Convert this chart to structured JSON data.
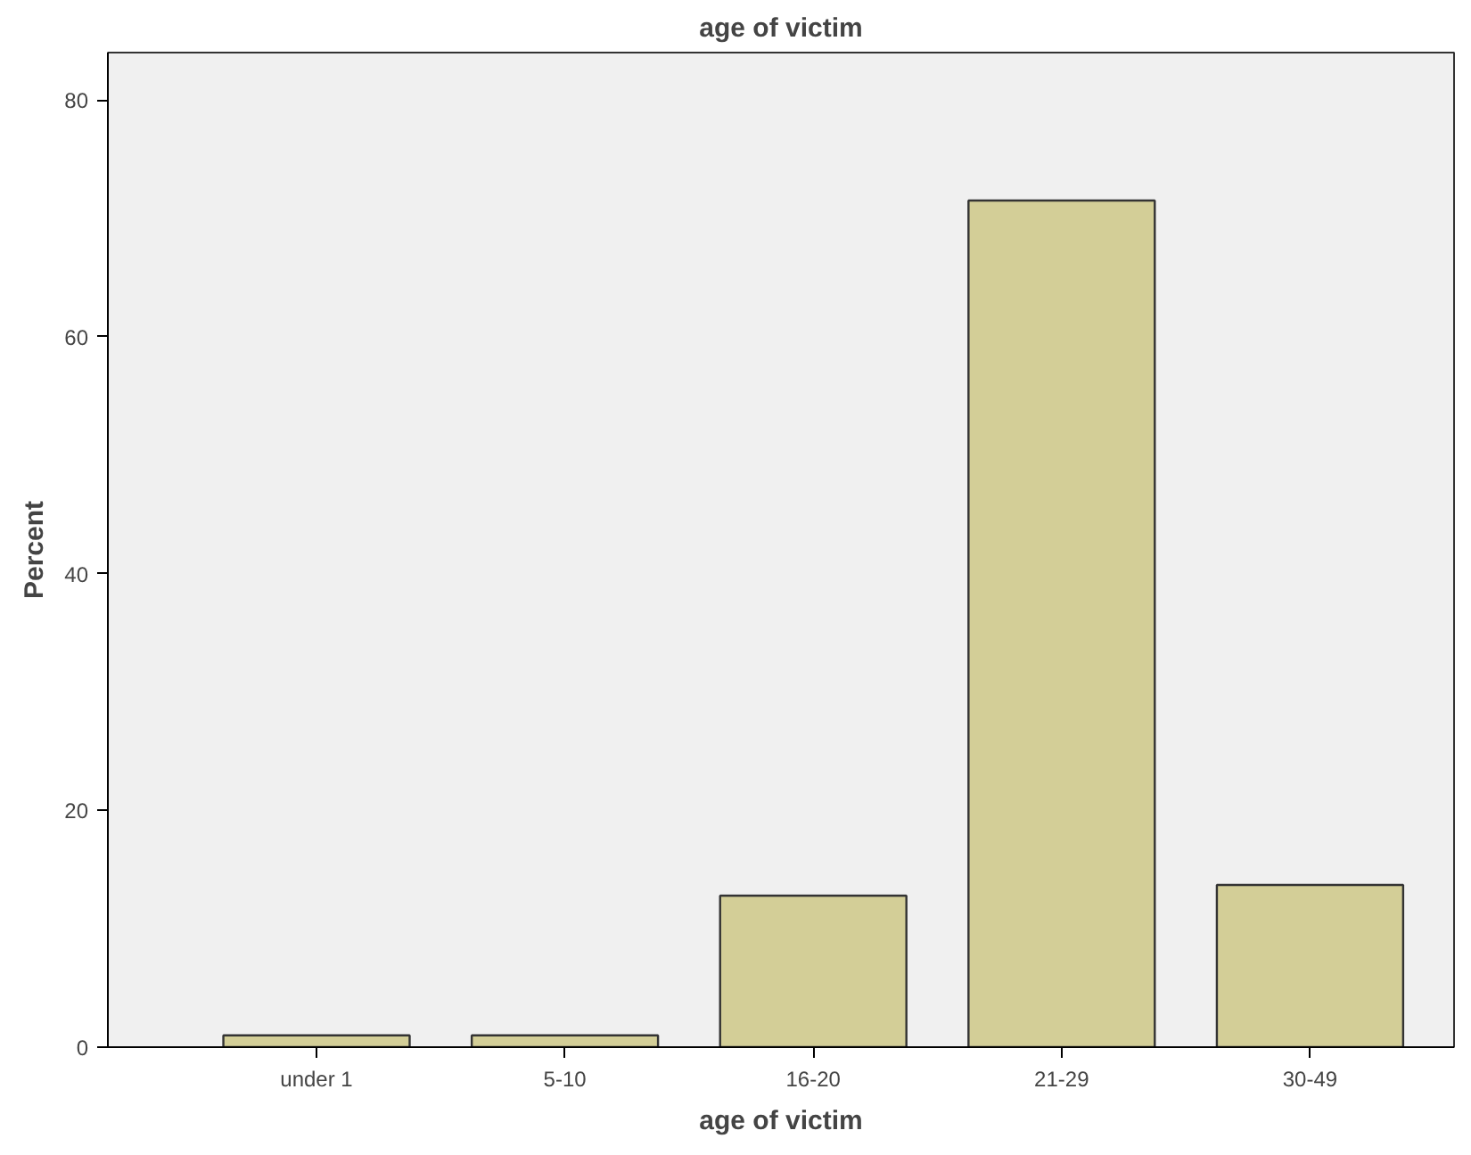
{
  "chart_data": {
    "type": "bar",
    "title": "age of victim",
    "xlabel": "age of victim",
    "ylabel": "Percent",
    "categories": [
      "under 1",
      "5-10",
      "16-20",
      "21-29",
      "30-49"
    ],
    "values": [
      1.0,
      1.0,
      12.8,
      71.5,
      13.7
    ],
    "color": "#d3ce97",
    "ylim": [
      0,
      84
    ],
    "yticks": [
      0,
      20,
      40,
      60,
      80
    ],
    "grid": false
  }
}
